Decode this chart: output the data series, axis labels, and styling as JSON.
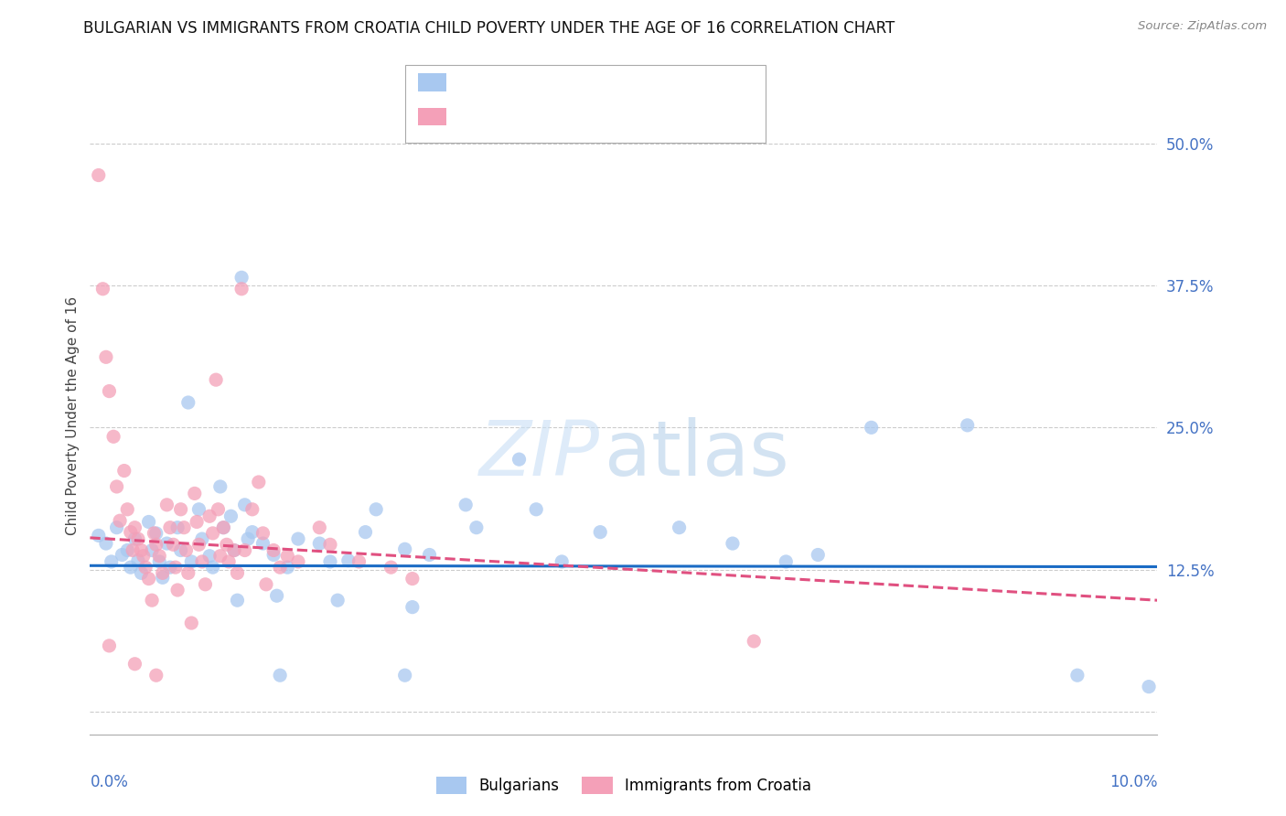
{
  "title": "BULGARIAN VS IMMIGRANTS FROM CROATIA CHILD POVERTY UNDER THE AGE OF 16 CORRELATION CHART",
  "source": "Source: ZipAtlas.com",
  "ylabel": "Child Poverty Under the Age of 16",
  "xlim": [
    0.0,
    0.1
  ],
  "ylim": [
    -0.02,
    0.54
  ],
  "yticks": [
    0.0,
    0.125,
    0.25,
    0.375,
    0.5
  ],
  "ytick_labels": [
    "",
    "12.5%",
    "25.0%",
    "37.5%",
    "50.0%"
  ],
  "bg_color": "#ffffff",
  "grid_color": "#cccccc",
  "blue_scatter": [
    [
      0.0008,
      0.155
    ],
    [
      0.0015,
      0.148
    ],
    [
      0.002,
      0.132
    ],
    [
      0.0025,
      0.162
    ],
    [
      0.003,
      0.138
    ],
    [
      0.0035,
      0.142
    ],
    [
      0.0038,
      0.127
    ],
    [
      0.0042,
      0.152
    ],
    [
      0.0045,
      0.133
    ],
    [
      0.0048,
      0.122
    ],
    [
      0.0055,
      0.167
    ],
    [
      0.0058,
      0.142
    ],
    [
      0.0062,
      0.157
    ],
    [
      0.0065,
      0.132
    ],
    [
      0.0068,
      0.118
    ],
    [
      0.0072,
      0.148
    ],
    [
      0.0075,
      0.127
    ],
    [
      0.0082,
      0.162
    ],
    [
      0.0085,
      0.142
    ],
    [
      0.0092,
      0.272
    ],
    [
      0.0095,
      0.132
    ],
    [
      0.0102,
      0.178
    ],
    [
      0.0105,
      0.152
    ],
    [
      0.0112,
      0.137
    ],
    [
      0.0115,
      0.127
    ],
    [
      0.0122,
      0.198
    ],
    [
      0.0125,
      0.162
    ],
    [
      0.0132,
      0.172
    ],
    [
      0.0135,
      0.142
    ],
    [
      0.0138,
      0.098
    ],
    [
      0.0142,
      0.382
    ],
    [
      0.0145,
      0.182
    ],
    [
      0.0148,
      0.152
    ],
    [
      0.0152,
      0.158
    ],
    [
      0.0162,
      0.148
    ],
    [
      0.0172,
      0.138
    ],
    [
      0.0175,
      0.102
    ],
    [
      0.0178,
      0.032
    ],
    [
      0.0185,
      0.127
    ],
    [
      0.0195,
      0.152
    ],
    [
      0.0215,
      0.148
    ],
    [
      0.0225,
      0.132
    ],
    [
      0.0232,
      0.098
    ],
    [
      0.0242,
      0.133
    ],
    [
      0.0258,
      0.158
    ],
    [
      0.0268,
      0.178
    ],
    [
      0.0295,
      0.143
    ],
    [
      0.0302,
      0.092
    ],
    [
      0.0318,
      0.138
    ],
    [
      0.0352,
      0.182
    ],
    [
      0.0362,
      0.162
    ],
    [
      0.0402,
      0.222
    ],
    [
      0.0418,
      0.178
    ],
    [
      0.0442,
      0.132
    ],
    [
      0.0478,
      0.158
    ],
    [
      0.0552,
      0.162
    ],
    [
      0.0602,
      0.148
    ],
    [
      0.0652,
      0.132
    ],
    [
      0.0682,
      0.138
    ],
    [
      0.0732,
      0.25
    ],
    [
      0.0822,
      0.252
    ],
    [
      0.0295,
      0.032
    ],
    [
      0.0925,
      0.032
    ],
    [
      0.0992,
      0.022
    ]
  ],
  "pink_scatter": [
    [
      0.0008,
      0.472
    ],
    [
      0.0012,
      0.372
    ],
    [
      0.0015,
      0.312
    ],
    [
      0.0018,
      0.282
    ],
    [
      0.0022,
      0.242
    ],
    [
      0.0025,
      0.198
    ],
    [
      0.0028,
      0.168
    ],
    [
      0.0032,
      0.212
    ],
    [
      0.0035,
      0.178
    ],
    [
      0.0038,
      0.158
    ],
    [
      0.004,
      0.142
    ],
    [
      0.0042,
      0.162
    ],
    [
      0.0045,
      0.152
    ],
    [
      0.0048,
      0.142
    ],
    [
      0.005,
      0.137
    ],
    [
      0.0052,
      0.127
    ],
    [
      0.0055,
      0.117
    ],
    [
      0.0058,
      0.098
    ],
    [
      0.006,
      0.157
    ],
    [
      0.0062,
      0.147
    ],
    [
      0.0065,
      0.137
    ],
    [
      0.0068,
      0.122
    ],
    [
      0.0072,
      0.182
    ],
    [
      0.0075,
      0.162
    ],
    [
      0.0078,
      0.147
    ],
    [
      0.008,
      0.127
    ],
    [
      0.0082,
      0.107
    ],
    [
      0.0085,
      0.178
    ],
    [
      0.0088,
      0.162
    ],
    [
      0.009,
      0.142
    ],
    [
      0.0092,
      0.122
    ],
    [
      0.0095,
      0.078
    ],
    [
      0.0098,
      0.192
    ],
    [
      0.01,
      0.167
    ],
    [
      0.0102,
      0.147
    ],
    [
      0.0105,
      0.132
    ],
    [
      0.0108,
      0.112
    ],
    [
      0.0112,
      0.172
    ],
    [
      0.0115,
      0.157
    ],
    [
      0.0118,
      0.292
    ],
    [
      0.012,
      0.178
    ],
    [
      0.0122,
      0.137
    ],
    [
      0.0125,
      0.162
    ],
    [
      0.0128,
      0.147
    ],
    [
      0.013,
      0.132
    ],
    [
      0.0135,
      0.142
    ],
    [
      0.0138,
      0.122
    ],
    [
      0.0142,
      0.372
    ],
    [
      0.0145,
      0.142
    ],
    [
      0.0152,
      0.178
    ],
    [
      0.0158,
      0.202
    ],
    [
      0.0162,
      0.157
    ],
    [
      0.0165,
      0.112
    ],
    [
      0.0172,
      0.142
    ],
    [
      0.0178,
      0.127
    ],
    [
      0.0185,
      0.137
    ],
    [
      0.0195,
      0.132
    ],
    [
      0.0215,
      0.162
    ],
    [
      0.0225,
      0.147
    ],
    [
      0.0252,
      0.132
    ],
    [
      0.0282,
      0.127
    ],
    [
      0.0302,
      0.117
    ],
    [
      0.0622,
      0.062
    ],
    [
      0.0018,
      0.058
    ],
    [
      0.0042,
      0.042
    ],
    [
      0.0062,
      0.032
    ]
  ],
  "blue_line_color": "#1a6bc4",
  "pink_line_color": "#e05080",
  "blue_scatter_color": "#a8c8f0",
  "pink_scatter_color": "#f4a0b8",
  "scatter_size": 120,
  "scatter_alpha": 0.75,
  "title_fontsize": 12,
  "axis_color": "#4472c4",
  "legend_label_blue": "Bulgarians",
  "legend_label_pink": "Immigrants from Croatia",
  "blue_line_y0": 0.1285,
  "blue_line_y1": 0.1275,
  "pink_line_y0": 0.153,
  "pink_line_y1": 0.098
}
